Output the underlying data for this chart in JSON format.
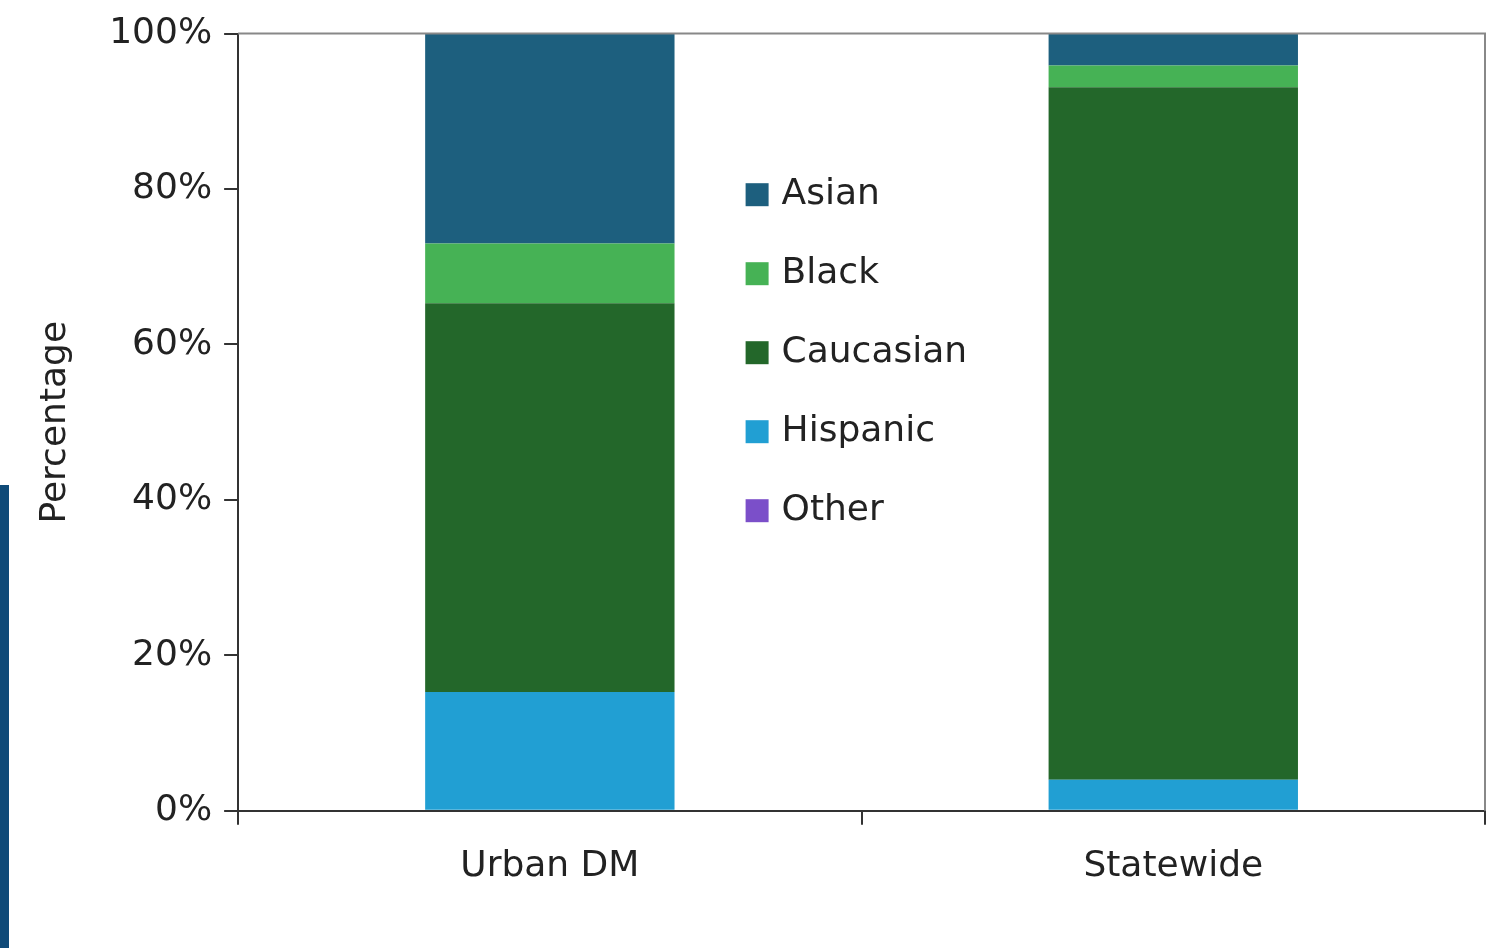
{
  "chart_data": {
    "type": "bar",
    "ylabel": "Percentage",
    "categories": [
      "Urban DM",
      "Statewide"
    ],
    "stacked": true,
    "series": [
      {
        "name": "Other",
        "color": "#7b4fc9",
        "values": [
          0,
          0
        ]
      },
      {
        "name": "Hispanic",
        "color": "#219fd3",
        "values": [
          15.3,
          4.0
        ]
      },
      {
        "name": "Caucasian",
        "color": "#23672a",
        "values": [
          50.0,
          89.1
        ]
      },
      {
        "name": "Black",
        "color": "#46b255",
        "values": [
          7.7,
          2.8
        ]
      },
      {
        "name": "Asian",
        "color": "#1d5f7e",
        "values": [
          27.0,
          4.1
        ]
      }
    ],
    "ylim": [
      0,
      100
    ],
    "yticks": [
      {
        "value": 0,
        "label": "0%"
      },
      {
        "value": 20,
        "label": "20%"
      },
      {
        "value": 40,
        "label": "40%"
      },
      {
        "value": 60,
        "label": "60%"
      },
      {
        "value": 80,
        "label": "80%"
      },
      {
        "value": 100,
        "label": "100%"
      }
    ],
    "grid": false,
    "legend": "center"
  }
}
